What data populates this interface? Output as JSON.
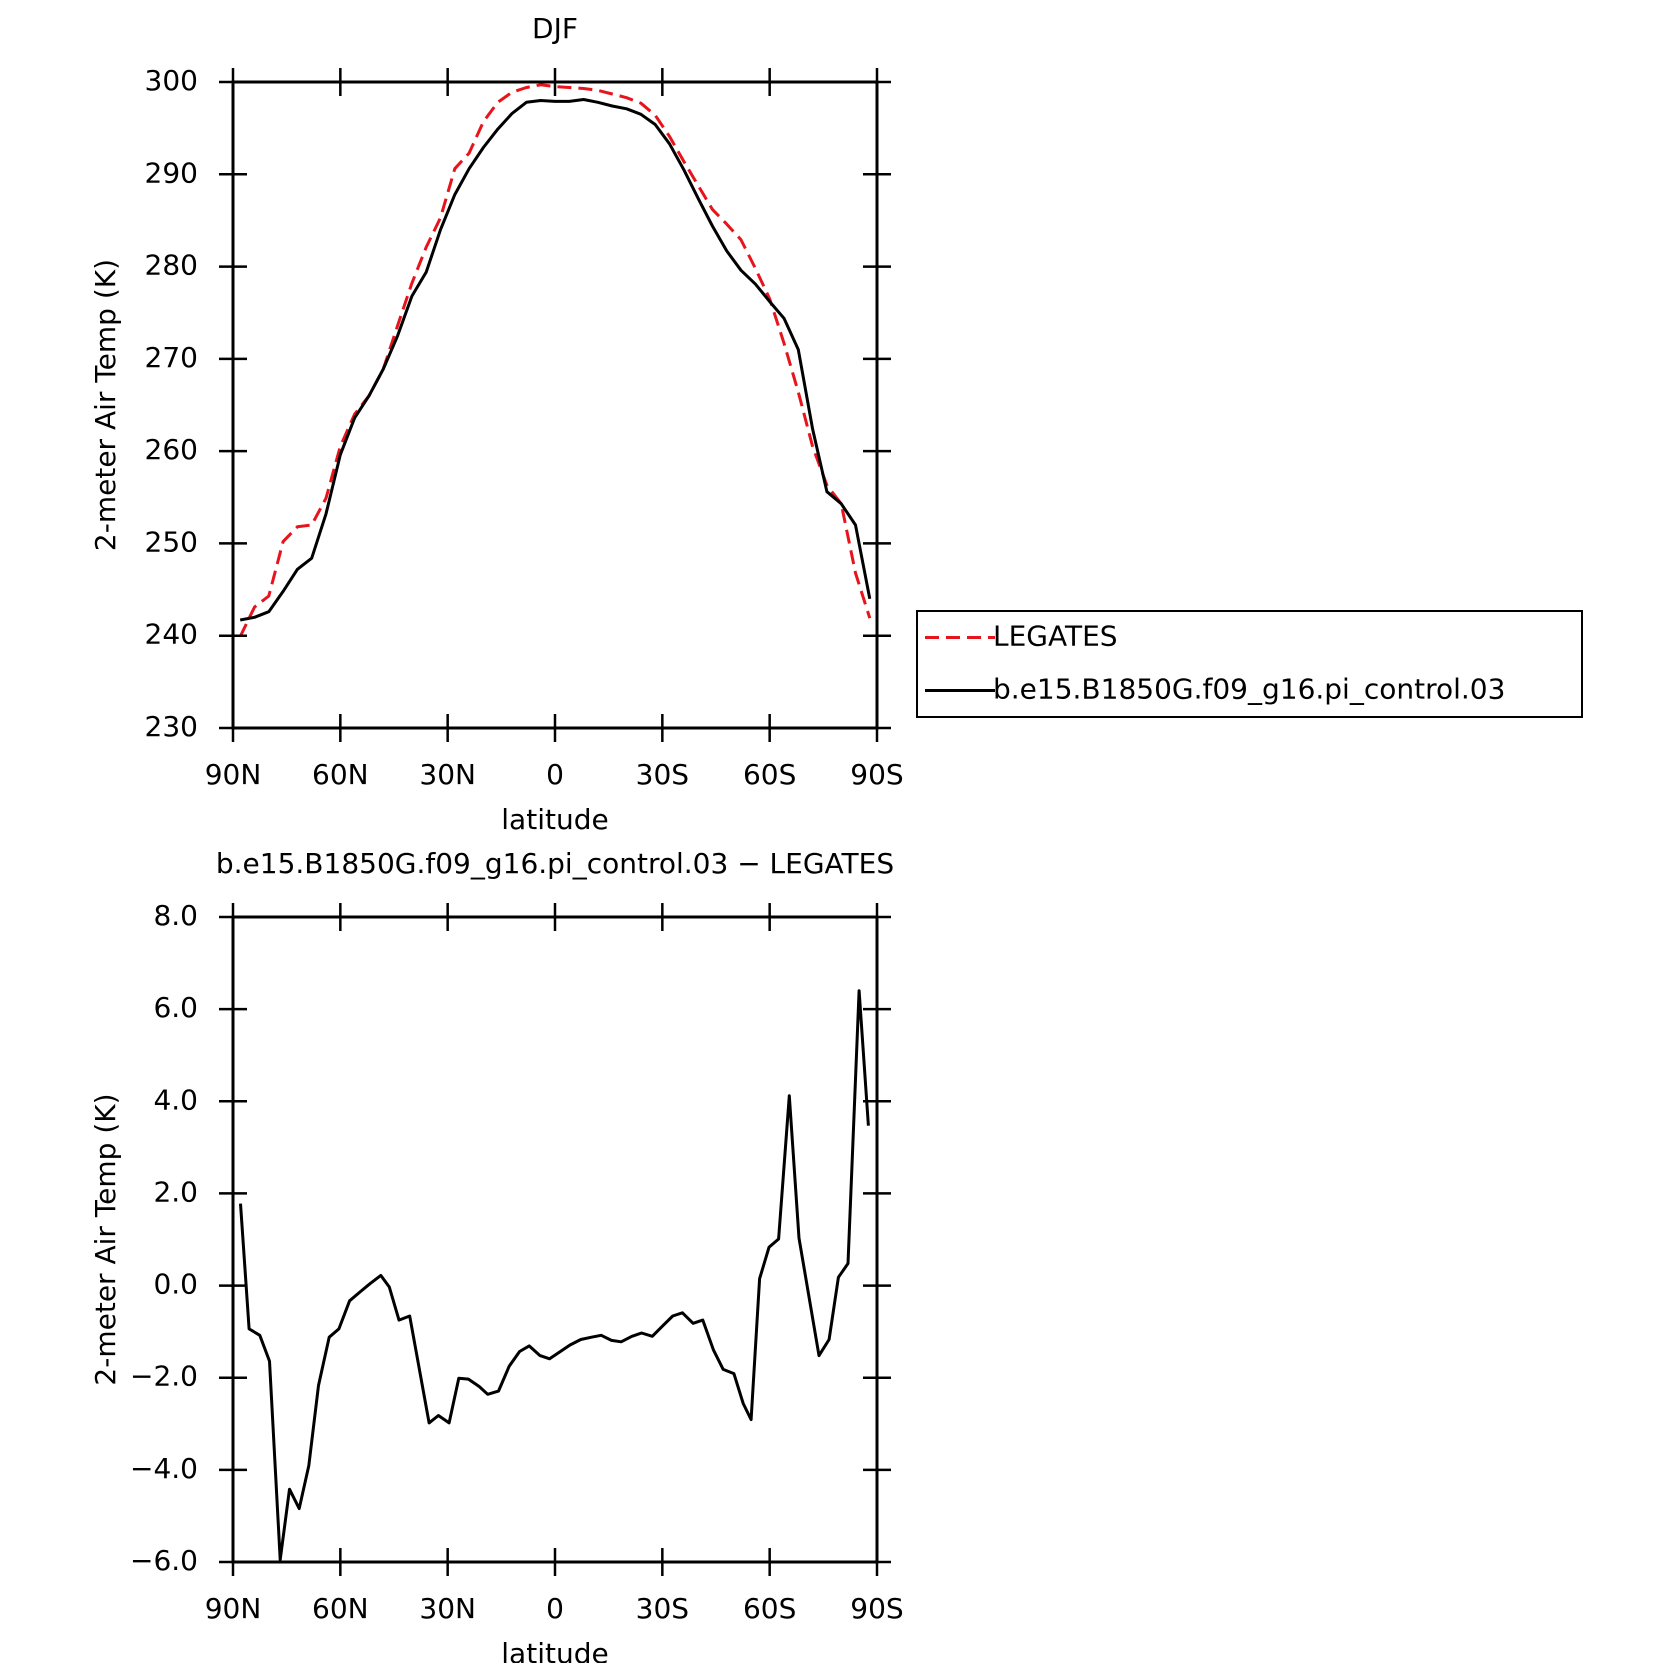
{
  "chart_data": [
    {
      "type": "line",
      "title": "DJF",
      "xlabel": "latitude",
      "ylabel": "2-meter Air Temp (K)",
      "x": [
        88,
        84,
        80,
        76,
        72,
        68,
        64,
        60,
        56,
        52,
        48,
        44,
        40,
        36,
        32,
        28,
        24,
        20,
        16,
        12,
        8,
        4,
        0,
        -4,
        -8,
        -12,
        -16,
        -20,
        -24,
        -28,
        -32,
        -36,
        -40,
        -44,
        -48,
        -52,
        -56,
        -60,
        -64,
        -68,
        -72,
        -76,
        -80,
        -84,
        -88
      ],
      "series": [
        {
          "name": "LEGATES",
          "color": "#e8141c",
          "linestyle": "dashed",
          "values": [
            239.9,
            243.1,
            244.3,
            250.2,
            251.8,
            252.0,
            254.9,
            260.5,
            264.0,
            266.0,
            268.9,
            273.6,
            278.2,
            282.1,
            285.3,
            290.6,
            292.3,
            295.7,
            297.8,
            298.9,
            299.4,
            299.7,
            299.5,
            299.4,
            299.3,
            299.1,
            298.7,
            298.3,
            297.7,
            296.4,
            294.1,
            291.4,
            288.8,
            286.2,
            284.6,
            282.9,
            279.8,
            276.5,
            271.7,
            266.4,
            260.5,
            256.3,
            254.3,
            246.8,
            241.9
          ]
        },
        {
          "name": "b.e15.B1850G.f09_g16.pi_control.03",
          "color": "#000000",
          "linestyle": "solid",
          "values": [
            241.7,
            242.0,
            242.6,
            244.8,
            247.2,
            248.4,
            253.2,
            259.6,
            263.6,
            266.0,
            268.9,
            272.5,
            276.8,
            279.4,
            284.0,
            287.8,
            290.6,
            292.9,
            294.9,
            296.6,
            297.8,
            298.0,
            297.9,
            297.9,
            298.1,
            297.8,
            297.4,
            297.1,
            296.5,
            295.4,
            293.3,
            290.5,
            287.4,
            284.4,
            281.7,
            279.6,
            278.1,
            276.2,
            274.4,
            271.0,
            262.4,
            255.6,
            254.3,
            252.0,
            244.0
          ]
        }
      ],
      "xlim": [
        90,
        -90
      ],
      "xticks": [
        {
          "value": 90,
          "label": "90N"
        },
        {
          "value": 60,
          "label": "60N"
        },
        {
          "value": 30,
          "label": "30N"
        },
        0,
        {
          "value": -30,
          "label": "30S"
        },
        {
          "value": -60,
          "label": "60S"
        },
        {
          "value": -90,
          "label": "90S"
        }
      ],
      "ylim": [
        230,
        300
      ],
      "yticks": [
        230,
        240,
        250,
        260,
        270,
        280,
        290,
        300
      ],
      "legend": "right"
    },
    {
      "type": "line",
      "title": "b.e15.B1850G.f09_g16.pi_control.03 − LEGATES",
      "xlabel": "latitude",
      "ylabel": "2-meter Air Temp (K)",
      "x": [
        87.9,
        85.5,
        82.5,
        79.8,
        76.8,
        74.2,
        71.5,
        68.8,
        66.1,
        63.1,
        60.4,
        57.4,
        54.4,
        51.7,
        48.7,
        46.3,
        43.6,
        40.6,
        35.2,
        32.6,
        29.6,
        26.9,
        24.2,
        21.2,
        18.8,
        15.8,
        12.8,
        9.9,
        7.2,
        4.2,
        1.5,
        -1.5,
        -4.2,
        -7.2,
        -10.2,
        -12.9,
        -15.8,
        -18.5,
        -21.5,
        -24.2,
        -27.2,
        -29.9,
        -32.9,
        -35.6,
        -38.6,
        -41.3,
        -44.3,
        -47.0,
        -50.0,
        -52.6,
        -54.8,
        -57.2,
        -59.8,
        -62.5,
        -65.5,
        -68.2,
        -73.8,
        -76.6,
        -79.2,
        -81.9,
        -85.0,
        -87.6
      ],
      "values": [
        1.78,
        -0.94,
        -1.08,
        -1.64,
        -5.95,
        -4.42,
        -4.84,
        -3.91,
        -2.17,
        -1.12,
        -0.94,
        -0.33,
        -0.13,
        0.04,
        0.22,
        -0.03,
        -0.75,
        -0.66,
        -2.98,
        -2.82,
        -2.98,
        -2.01,
        -2.03,
        -2.19,
        -2.36,
        -2.29,
        -1.75,
        -1.43,
        -1.31,
        -1.52,
        -1.59,
        -1.43,
        -1.29,
        -1.17,
        -1.12,
        -1.08,
        -1.19,
        -1.22,
        -1.1,
        -1.03,
        -1.1,
        -0.89,
        -0.66,
        -0.59,
        -0.82,
        -0.75,
        -1.4,
        -1.82,
        -1.91,
        -2.56,
        -2.91,
        0.15,
        0.83,
        1.01,
        4.12,
        1.03,
        -1.52,
        -1.17,
        0.18,
        0.48,
        6.4,
        3.47
      ],
      "color": "#000000",
      "xlim": [
        90,
        -90
      ],
      "xticks": [
        {
          "value": 90,
          "label": "90N"
        },
        {
          "value": 60,
          "label": "60N"
        },
        {
          "value": 30,
          "label": "30N"
        },
        0,
        {
          "value": -30,
          "label": "30S"
        },
        {
          "value": -60,
          "label": "60S"
        },
        {
          "value": -90,
          "label": "90S"
        }
      ],
      "ylim": [
        -6,
        8
      ],
      "yticks": [
        {
          "value": -6,
          "label": "−6.0"
        },
        {
          "value": -4,
          "label": "−4.0"
        },
        {
          "value": -2,
          "label": "−2.0"
        },
        {
          "value": 0,
          "label": "0.0"
        },
        {
          "value": 2,
          "label": "2.0"
        },
        {
          "value": 4,
          "label": "4.0"
        },
        {
          "value": 6,
          "label": "6.0"
        },
        {
          "value": 8,
          "label": "8.0"
        }
      ]
    }
  ]
}
